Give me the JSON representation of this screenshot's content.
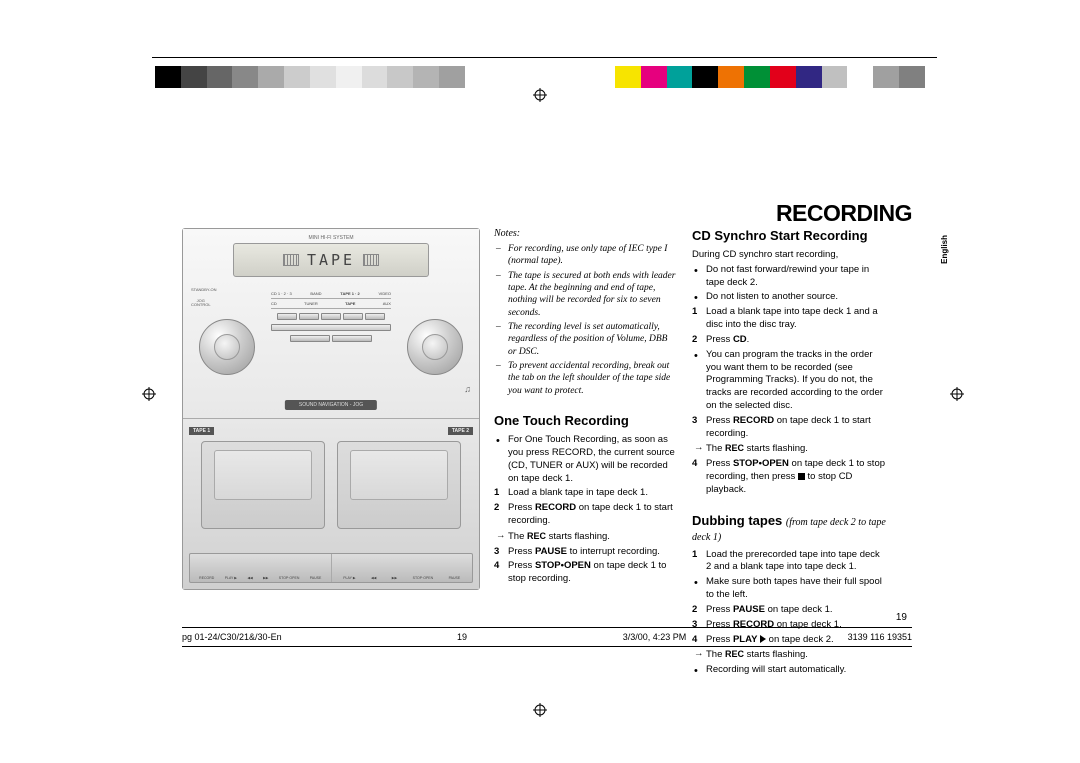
{
  "page_title": "RECORDING",
  "language_tab": "English",
  "page_number": "19",
  "doc_id": "3139 116 19351",
  "footer": {
    "file": "pg 01-24/C30/21&/30-En",
    "page": "19",
    "timestamp": "3/3/00, 4:23 PM"
  },
  "color_bar": {
    "left": [
      "#000000",
      "#444444",
      "#666666",
      "#888888",
      "#aaaaaa",
      "#cccccc",
      "#e0e0e0",
      "#f0f0f0",
      "#dcdcdc",
      "#c8c8c8",
      "#b4b4b4",
      "#a0a0a0"
    ],
    "right": [
      "#f7e400",
      "#e6007e",
      "#00a19a",
      "#000000",
      "#ee7203",
      "#009036",
      "#e2001a",
      "#312783",
      "#c0c0c0",
      "#ffffff",
      "#a0a0a0",
      "#808080"
    ]
  },
  "device": {
    "brand_line": "MINI HI-FI SYSTEM",
    "display_text": "TAPE",
    "standby": "STANDBY-ON",
    "jog_control": "JOG\nCONTROL",
    "sources": [
      "CD 1 · 2 · 3",
      "BAND",
      "TAPE 1 · 2",
      "VIDEO"
    ],
    "sources_row2": [
      "CD",
      "TUNER",
      "TAPE",
      "AUX"
    ],
    "sound_nav": "SOUND NAVIGATION - JOG",
    "tape1": "TAPE 1",
    "tape2": "TAPE 2",
    "transport_left": [
      "RECORD",
      "PLAY ▶",
      "◀◀",
      "▶▶",
      "STOP·OPEN",
      "PAUSE"
    ],
    "transport_right": [
      "PLAY ▶",
      "◀◀",
      "▶▶",
      "STOP·OPEN",
      "PAUSE"
    ]
  },
  "notes": {
    "heading": "Notes:",
    "items": [
      "For recording, use only tape of IEC type I (normal tape).",
      "The tape is secured at both ends with leader tape. At the beginning and end of tape, nothing will be recorded for six to seven seconds.",
      "The recording level is set automatically, regardless of the position of Volume, DBB or DSC.",
      "To prevent accidental recording, break out the tab on the left shoulder of the tape side you want to protect."
    ]
  },
  "one_touch": {
    "heading": "One Touch Recording",
    "items": [
      {
        "type": "bullet",
        "html": "For One Touch Recording, as soon as you press RECORD, the current source (CD, TUNER or AUX) will be recorded on tape deck 1."
      },
      {
        "type": "num",
        "num": "1",
        "html": "Load a blank tape in tape deck 1."
      },
      {
        "type": "num",
        "num": "2",
        "html": "Press <b>RECORD</b> on tape deck 1 to start recording."
      },
      {
        "type": "arrow",
        "html": "The <small class=\"caps\"><b>REC</b></small> starts flashing."
      },
      {
        "type": "num",
        "num": "3",
        "html": "Press <b>PAUSE</b> to interrupt recording."
      },
      {
        "type": "num",
        "num": "4",
        "html": "Press <b>STOP•OPEN</b> on tape deck 1 to stop recording."
      }
    ]
  },
  "cd_synchro": {
    "heading": "CD Synchro Start Recording",
    "intro": "During CD synchro start recording,",
    "items": [
      {
        "type": "bullet",
        "html": "Do not fast forward/rewind your tape in tape deck 2."
      },
      {
        "type": "bullet",
        "html": "Do not listen to another source."
      },
      {
        "type": "num",
        "num": "1",
        "html": "Load a blank tape into tape deck 1 and a disc into the disc tray."
      },
      {
        "type": "num",
        "num": "2",
        "html": "Press <b>CD</b>."
      },
      {
        "type": "bullet",
        "html": "You can program the tracks in the order you want them to be recorded (see Programming Tracks). If you do not, the tracks are recorded according to the order on the selected disc."
      },
      {
        "type": "num",
        "num": "3",
        "html": "Press <b>RECORD</b> on tape deck 1 to start recording."
      },
      {
        "type": "arrow",
        "html": "The <small class=\"caps\"><b>REC</b></small> starts flashing."
      },
      {
        "type": "num",
        "num": "4",
        "html": "Press <b>STOP•OPEN</b> on tape deck 1 to stop recording, then press <span class=\"glyph-stop\"></span> to stop CD playback."
      }
    ]
  },
  "dubbing": {
    "heading": "Dubbing tapes",
    "sub": "(from tape deck 2 to tape deck 1)",
    "items": [
      {
        "type": "num",
        "num": "1",
        "html": "Load the prerecorded tape into tape deck 2 and a blank tape into tape deck 1."
      },
      {
        "type": "bullet",
        "html": "Make sure both tapes have their full spool to the left."
      },
      {
        "type": "num",
        "num": "2",
        "html": "Press <b>PAUSE</b> on tape deck 1."
      },
      {
        "type": "num",
        "num": "3",
        "html": "Press <b>RECORD</b> on tape deck 1."
      },
      {
        "type": "num",
        "num": "4",
        "html": "Press <b>PLAY</b> <span class=\"glyph-play\"></span> on tape deck 2."
      },
      {
        "type": "arrow",
        "html": "The <small class=\"caps\"><b>REC</b></small> starts flashing."
      },
      {
        "type": "bullet",
        "html": "Recording will start automatically."
      }
    ]
  }
}
